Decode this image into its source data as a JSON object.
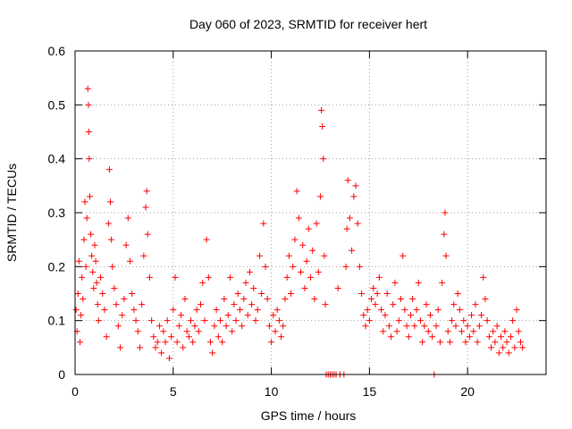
{
  "chart_data": {
    "type": "scatter",
    "title": "Day 060 of 2023, SRMTID for receiver hert",
    "xlabel": "GPS time / hours",
    "ylabel": "SRMTID / TECUs",
    "xlim": [
      0,
      24
    ],
    "ylim": [
      0,
      0.6
    ],
    "xticks": [
      0,
      5,
      10,
      15,
      20
    ],
    "xtick_labels": [
      "0",
      "5",
      "10",
      "15",
      "20"
    ],
    "yticks": [
      0,
      0.1,
      0.2,
      0.3,
      0.4,
      0.5,
      0.6
    ],
    "ytick_labels": [
      "0",
      "0.1",
      "0.2",
      "0.3",
      "0.4",
      "0.5",
      "0.6"
    ],
    "grid": true,
    "marker": "+",
    "series_color": "#ff0000",
    "series": [
      {
        "name": "SRMTID",
        "points": [
          [
            0.05,
            0.12
          ],
          [
            0.1,
            0.08
          ],
          [
            0.15,
            0.15
          ],
          [
            0.2,
            0.21
          ],
          [
            0.25,
            0.06
          ],
          [
            0.3,
            0.11
          ],
          [
            0.35,
            0.18
          ],
          [
            0.4,
            0.14
          ],
          [
            0.45,
            0.25
          ],
          [
            0.5,
            0.32
          ],
          [
            0.55,
            0.2
          ],
          [
            0.6,
            0.29
          ],
          [
            0.65,
            0.53
          ],
          [
            0.68,
            0.5
          ],
          [
            0.7,
            0.45
          ],
          [
            0.72,
            0.4
          ],
          [
            0.75,
            0.33
          ],
          [
            0.8,
            0.26
          ],
          [
            0.85,
            0.22
          ],
          [
            0.9,
            0.19
          ],
          [
            0.95,
            0.16
          ],
          [
            1.0,
            0.24
          ],
          [
            1.05,
            0.21
          ],
          [
            1.1,
            0.17
          ],
          [
            1.15,
            0.13
          ],
          [
            1.2,
            0.1
          ],
          [
            1.3,
            0.18
          ],
          [
            1.4,
            0.15
          ],
          [
            1.5,
            0.12
          ],
          [
            1.6,
            0.07
          ],
          [
            1.7,
            0.28
          ],
          [
            1.75,
            0.38
          ],
          [
            1.8,
            0.32
          ],
          [
            1.85,
            0.25
          ],
          [
            1.9,
            0.2
          ],
          [
            2.0,
            0.16
          ],
          [
            2.1,
            0.13
          ],
          [
            2.2,
            0.09
          ],
          [
            2.3,
            0.05
          ],
          [
            2.4,
            0.11
          ],
          [
            2.5,
            0.14
          ],
          [
            2.6,
            0.24
          ],
          [
            2.7,
            0.29
          ],
          [
            2.8,
            0.21
          ],
          [
            2.9,
            0.15
          ],
          [
            3.0,
            0.12
          ],
          [
            3.1,
            0.1
          ],
          [
            3.2,
            0.08
          ],
          [
            3.3,
            0.05
          ],
          [
            3.4,
            0.13
          ],
          [
            3.5,
            0.22
          ],
          [
            3.6,
            0.31
          ],
          [
            3.65,
            0.34
          ],
          [
            3.7,
            0.26
          ],
          [
            3.8,
            0.18
          ],
          [
            3.9,
            0.1
          ],
          [
            4.0,
            0.07
          ],
          [
            4.1,
            0.05
          ],
          [
            4.2,
            0.06
          ],
          [
            4.3,
            0.09
          ],
          [
            4.4,
            0.04
          ],
          [
            4.5,
            0.08
          ],
          [
            4.6,
            0.06
          ],
          [
            4.7,
            0.1
          ],
          [
            4.8,
            0.03
          ],
          [
            4.9,
            0.07
          ],
          [
            5.0,
            0.12
          ],
          [
            5.1,
            0.18
          ],
          [
            5.2,
            0.06
          ],
          [
            5.3,
            0.09
          ],
          [
            5.4,
            0.11
          ],
          [
            5.5,
            0.05
          ],
          [
            5.6,
            0.14
          ],
          [
            5.7,
            0.08
          ],
          [
            5.8,
            0.07
          ],
          [
            5.9,
            0.1
          ],
          [
            6.0,
            0.06
          ],
          [
            6.1,
            0.09
          ],
          [
            6.2,
            0.12
          ],
          [
            6.3,
            0.08
          ],
          [
            6.4,
            0.13
          ],
          [
            6.5,
            0.17
          ],
          [
            6.6,
            0.1
          ],
          [
            6.7,
            0.25
          ],
          [
            6.8,
            0.18
          ],
          [
            6.9,
            0.06
          ],
          [
            7.0,
            0.04
          ],
          [
            7.1,
            0.09
          ],
          [
            7.2,
            0.12
          ],
          [
            7.3,
            0.07
          ],
          [
            7.4,
            0.1
          ],
          [
            7.5,
            0.06
          ],
          [
            7.6,
            0.14
          ],
          [
            7.7,
            0.09
          ],
          [
            7.8,
            0.11
          ],
          [
            7.9,
            0.18
          ],
          [
            8.0,
            0.08
          ],
          [
            8.1,
            0.13
          ],
          [
            8.2,
            0.1
          ],
          [
            8.3,
            0.15
          ],
          [
            8.4,
            0.12
          ],
          [
            8.5,
            0.09
          ],
          [
            8.6,
            0.14
          ],
          [
            8.7,
            0.17
          ],
          [
            8.8,
            0.11
          ],
          [
            8.9,
            0.19
          ],
          [
            9.0,
            0.13
          ],
          [
            9.1,
            0.16
          ],
          [
            9.2,
            0.1
          ],
          [
            9.3,
            0.12
          ],
          [
            9.4,
            0.22
          ],
          [
            9.5,
            0.15
          ],
          [
            9.6,
            0.28
          ],
          [
            9.7,
            0.2
          ],
          [
            9.8,
            0.14
          ],
          [
            9.9,
            0.09
          ],
          [
            10.0,
            0.06
          ],
          [
            10.1,
            0.11
          ],
          [
            10.2,
            0.08
          ],
          [
            10.3,
            0.12
          ],
          [
            10.4,
            0.1
          ],
          [
            10.5,
            0.07
          ],
          [
            10.6,
            0.09
          ],
          [
            10.7,
            0.14
          ],
          [
            10.8,
            0.18
          ],
          [
            10.9,
            0.22
          ],
          [
            11.0,
            0.15
          ],
          [
            11.1,
            0.2
          ],
          [
            11.2,
            0.25
          ],
          [
            11.3,
            0.34
          ],
          [
            11.4,
            0.29
          ],
          [
            11.5,
            0.19
          ],
          [
            11.6,
            0.24
          ],
          [
            11.7,
            0.16
          ],
          [
            11.8,
            0.21
          ],
          [
            11.9,
            0.27
          ],
          [
            12.0,
            0.18
          ],
          [
            12.1,
            0.23
          ],
          [
            12.2,
            0.14
          ],
          [
            12.3,
            0.28
          ],
          [
            12.4,
            0.19
          ],
          [
            12.5,
            0.33
          ],
          [
            12.55,
            0.49
          ],
          [
            12.6,
            0.46
          ],
          [
            12.65,
            0.4
          ],
          [
            12.7,
            0.22
          ],
          [
            12.75,
            0.13
          ],
          [
            12.8,
            0.0
          ],
          [
            12.9,
            0.0
          ],
          [
            13.0,
            0.0
          ],
          [
            13.1,
            0.0
          ],
          [
            13.2,
            0.0
          ],
          [
            13.3,
            0.0
          ],
          [
            13.4,
            0.16
          ],
          [
            13.5,
            0.0
          ],
          [
            13.7,
            0.0
          ],
          [
            13.8,
            0.2
          ],
          [
            13.85,
            0.27
          ],
          [
            13.9,
            0.36
          ],
          [
            14.0,
            0.29
          ],
          [
            14.1,
            0.23
          ],
          [
            14.2,
            0.33
          ],
          [
            14.3,
            0.35
          ],
          [
            14.4,
            0.28
          ],
          [
            14.5,
            0.2
          ],
          [
            14.6,
            0.15
          ],
          [
            14.7,
            0.11
          ],
          [
            14.8,
            0.09
          ],
          [
            14.9,
            0.12
          ],
          [
            15.0,
            0.1
          ],
          [
            15.1,
            0.14
          ],
          [
            15.2,
            0.16
          ],
          [
            15.3,
            0.13
          ],
          [
            15.4,
            0.15
          ],
          [
            15.5,
            0.18
          ],
          [
            15.6,
            0.12
          ],
          [
            15.7,
            0.08
          ],
          [
            15.8,
            0.11
          ],
          [
            15.9,
            0.15
          ],
          [
            16.0,
            0.09
          ],
          [
            16.1,
            0.07
          ],
          [
            16.2,
            0.13
          ],
          [
            16.3,
            0.17
          ],
          [
            16.4,
            0.08
          ],
          [
            16.5,
            0.1
          ],
          [
            16.6,
            0.14
          ],
          [
            16.7,
            0.22
          ],
          [
            16.8,
            0.12
          ],
          [
            16.9,
            0.09
          ],
          [
            17.0,
            0.07
          ],
          [
            17.1,
            0.11
          ],
          [
            17.2,
            0.14
          ],
          [
            17.3,
            0.09
          ],
          [
            17.4,
            0.12
          ],
          [
            17.5,
            0.17
          ],
          [
            17.6,
            0.1
          ],
          [
            17.7,
            0.06
          ],
          [
            17.8,
            0.09
          ],
          [
            17.9,
            0.13
          ],
          [
            18.0,
            0.08
          ],
          [
            18.1,
            0.11
          ],
          [
            18.2,
            0.07
          ],
          [
            18.3,
            0.0
          ],
          [
            18.4,
            0.09
          ],
          [
            18.5,
            0.12
          ],
          [
            18.6,
            0.06
          ],
          [
            18.7,
            0.17
          ],
          [
            18.8,
            0.26
          ],
          [
            18.85,
            0.3
          ],
          [
            18.9,
            0.22
          ],
          [
            19.0,
            0.08
          ],
          [
            19.1,
            0.06
          ],
          [
            19.2,
            0.1
          ],
          [
            19.3,
            0.13
          ],
          [
            19.4,
            0.09
          ],
          [
            19.5,
            0.15
          ],
          [
            19.6,
            0.12
          ],
          [
            19.7,
            0.08
          ],
          [
            19.8,
            0.1
          ],
          [
            19.9,
            0.06
          ],
          [
            20.0,
            0.09
          ],
          [
            20.1,
            0.07
          ],
          [
            20.2,
            0.11
          ],
          [
            20.3,
            0.08
          ],
          [
            20.4,
            0.13
          ],
          [
            20.5,
            0.06
          ],
          [
            20.6,
            0.09
          ],
          [
            20.7,
            0.11
          ],
          [
            20.8,
            0.18
          ],
          [
            20.9,
            0.14
          ],
          [
            21.0,
            0.1
          ],
          [
            21.1,
            0.07
          ],
          [
            21.2,
            0.05
          ],
          [
            21.3,
            0.08
          ],
          [
            21.4,
            0.06
          ],
          [
            21.5,
            0.09
          ],
          [
            21.6,
            0.04
          ],
          [
            21.7,
            0.07
          ],
          [
            21.8,
            0.05
          ],
          [
            21.9,
            0.08
          ],
          [
            22.0,
            0.06
          ],
          [
            22.1,
            0.04
          ],
          [
            22.2,
            0.07
          ],
          [
            22.3,
            0.1
          ],
          [
            22.4,
            0.05
          ],
          [
            22.5,
            0.12
          ],
          [
            22.6,
            0.08
          ],
          [
            22.7,
            0.06
          ],
          [
            22.8,
            0.05
          ]
        ]
      }
    ]
  }
}
